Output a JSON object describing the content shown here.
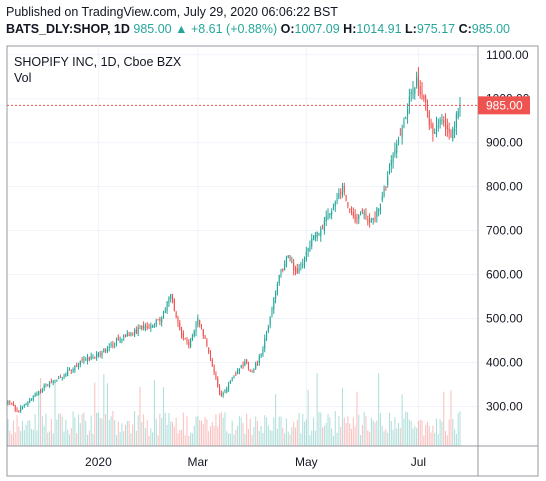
{
  "header": {
    "published": "Published on TradingView.com, July 29, 2020 06:06:22 BST",
    "symbol": "BATS_DLY:SHOP, 1D",
    "close_price": "985.00",
    "change_arrow": "▲",
    "change": "+8.61 (+0.88%)",
    "open_label": "O:",
    "open": "1007.09",
    "high_label": "H:",
    "high": "1014.91",
    "low_label": "L:",
    "low": "975.17",
    "close_label": "C:",
    "close": "985.00"
  },
  "colors": {
    "up": "#26a69a",
    "down": "#ef5350",
    "grid": "#f0f3fa",
    "border": "#9598a1",
    "price_line": "#ef5350"
  },
  "chart_data": {
    "type": "candlestick",
    "title": "SHOPIFY INC, 1D, Cboe BZX",
    "subtitle": "Vol",
    "y_ticks": [
      300,
      400,
      500,
      600,
      700,
      800,
      900,
      1000,
      1100
    ],
    "ylim": [
      210,
      1120
    ],
    "x_tick_labels": [
      {
        "label": "2020",
        "index": 50
      },
      {
        "label": "Mar",
        "index": 105
      },
      {
        "label": "May",
        "index": 165
      },
      {
        "label": "Jul",
        "index": 227
      }
    ],
    "last_price": 985.0,
    "last_price_label": "985.00",
    "waypoints": [
      [
        0,
        310
      ],
      [
        5,
        290
      ],
      [
        10,
        305
      ],
      [
        15,
        325
      ],
      [
        20,
        345
      ],
      [
        25,
        355
      ],
      [
        30,
        370
      ],
      [
        35,
        385
      ],
      [
        40,
        400
      ],
      [
        45,
        410
      ],
      [
        50,
        420
      ],
      [
        55,
        435
      ],
      [
        60,
        450
      ],
      [
        65,
        460
      ],
      [
        70,
        470
      ],
      [
        75,
        480
      ],
      [
        80,
        485
      ],
      [
        85,
        500
      ],
      [
        90,
        560
      ],
      [
        95,
        470
      ],
      [
        100,
        440
      ],
      [
        105,
        500
      ],
      [
        110,
        440
      ],
      [
        115,
        360
      ],
      [
        118,
        320
      ],
      [
        123,
        360
      ],
      [
        127,
        380
      ],
      [
        131,
        400
      ],
      [
        135,
        380
      ],
      [
        140,
        420
      ],
      [
        145,
        500
      ],
      [
        150,
        600
      ],
      [
        155,
        640
      ],
      [
        160,
        600
      ],
      [
        165,
        650
      ],
      [
        170,
        690
      ],
      [
        175,
        720
      ],
      [
        180,
        760
      ],
      [
        185,
        800
      ],
      [
        188,
        760
      ],
      [
        192,
        730
      ],
      [
        196,
        740
      ],
      [
        200,
        710
      ],
      [
        205,
        750
      ],
      [
        210,
        820
      ],
      [
        215,
        900
      ],
      [
        220,
        950
      ],
      [
        223,
        1020
      ],
      [
        226,
        1040
      ],
      [
        230,
        1000
      ],
      [
        235,
        920
      ],
      [
        240,
        960
      ],
      [
        245,
        910
      ],
      [
        250,
        985
      ]
    ],
    "n_bars": 251
  }
}
